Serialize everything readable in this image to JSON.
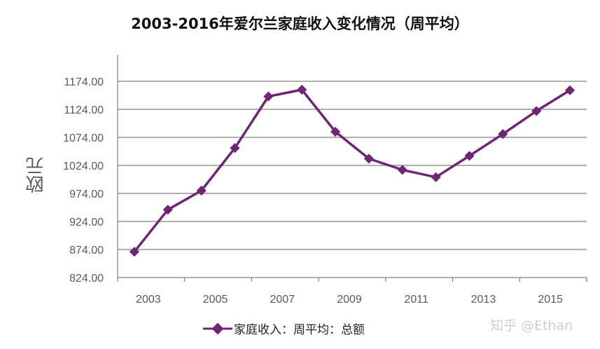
{
  "chart_data": {
    "type": "line",
    "title": "2003-2016年爱尔兰家庭收入变化情况（周平均）",
    "ylabel": "欧元",
    "xlabel": "",
    "x": [
      2003,
      2004,
      2005,
      2006,
      2007,
      2008,
      2009,
      2010,
      2011,
      2012,
      2013,
      2014,
      2015,
      2016
    ],
    "x_tick_labels": [
      "2003",
      "2005",
      "2007",
      "2009",
      "2011",
      "2013",
      "2015"
    ],
    "y_tick_labels": [
      "1174.00",
      "1124.00",
      "1074.00",
      "1024.00",
      "974.00",
      "924.00",
      "874.00",
      "824.00"
    ],
    "ylim": [
      824,
      1174
    ],
    "series": [
      {
        "name": "家庭收入：周平均：总额",
        "values": [
          870,
          945,
          979,
          1055,
          1147,
          1159,
          1084,
          1036,
          1016,
          1003,
          1041,
          1080,
          1121,
          1158
        ]
      }
    ],
    "grid": "horizontal",
    "legend_position": "bottom",
    "colors": {
      "series": "#702574",
      "grid": "#7f7f7f"
    }
  },
  "watermark": "知乎 @Ethan"
}
